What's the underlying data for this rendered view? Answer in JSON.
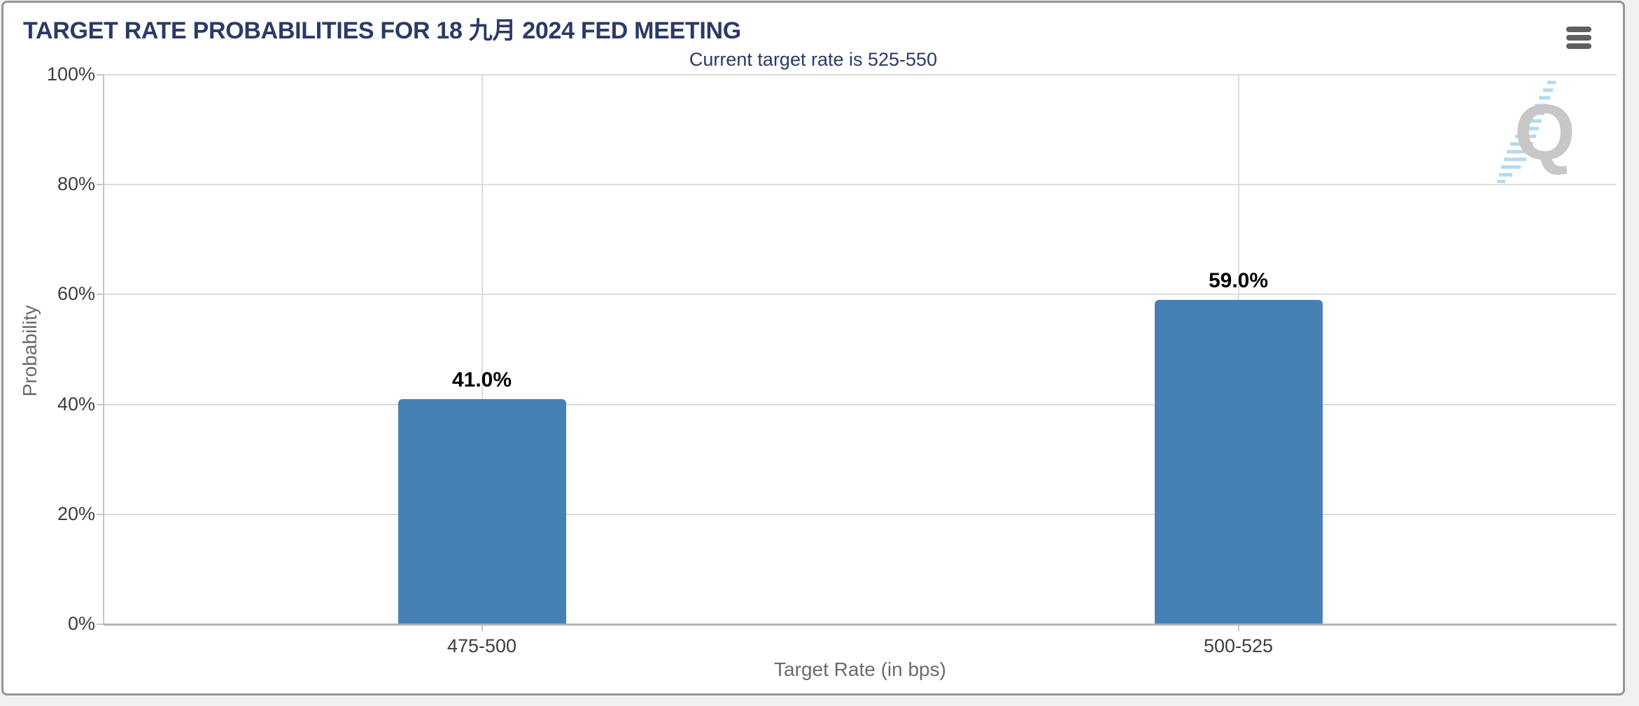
{
  "chart_data": {
    "type": "bar",
    "title": "TARGET RATE PROBABILITIES FOR 18 九月 2024 FED MEETING",
    "subtitle": "Current target rate is 525-550",
    "categories": [
      "475-500",
      "500-525"
    ],
    "values": [
      41.0,
      59.0
    ],
    "data_labels": [
      "41.0%",
      "59.0%"
    ],
    "xlabel": "Target Rate (in bps)",
    "ylabel": "Probability",
    "ylim": [
      0,
      100
    ],
    "ytick_step": 20,
    "yticks": [
      "100%",
      "80%",
      "60%",
      "40%",
      "20%",
      "0%"
    ],
    "grid": "horizontal gridlines at each 20% plus one vertical gridline per category",
    "legend": "none",
    "bar_color": "#4681b5"
  },
  "header": {
    "menu_icon": "hamburger-menu"
  },
  "watermark": {
    "letter": "Q",
    "dash_color": "#b5d9ee",
    "letter_color": "#c7c7c7"
  },
  "colors": {
    "title_navy": "#2b3a66",
    "bar_blue": "#4681b5",
    "gridline": "#dcdcdc",
    "axis_line": "#b3b3b3",
    "tick_label": "#3d3d3d",
    "axis_title": "#6b6b6b",
    "panel_border": "#95959e",
    "page_background": "#f1f1f1"
  }
}
